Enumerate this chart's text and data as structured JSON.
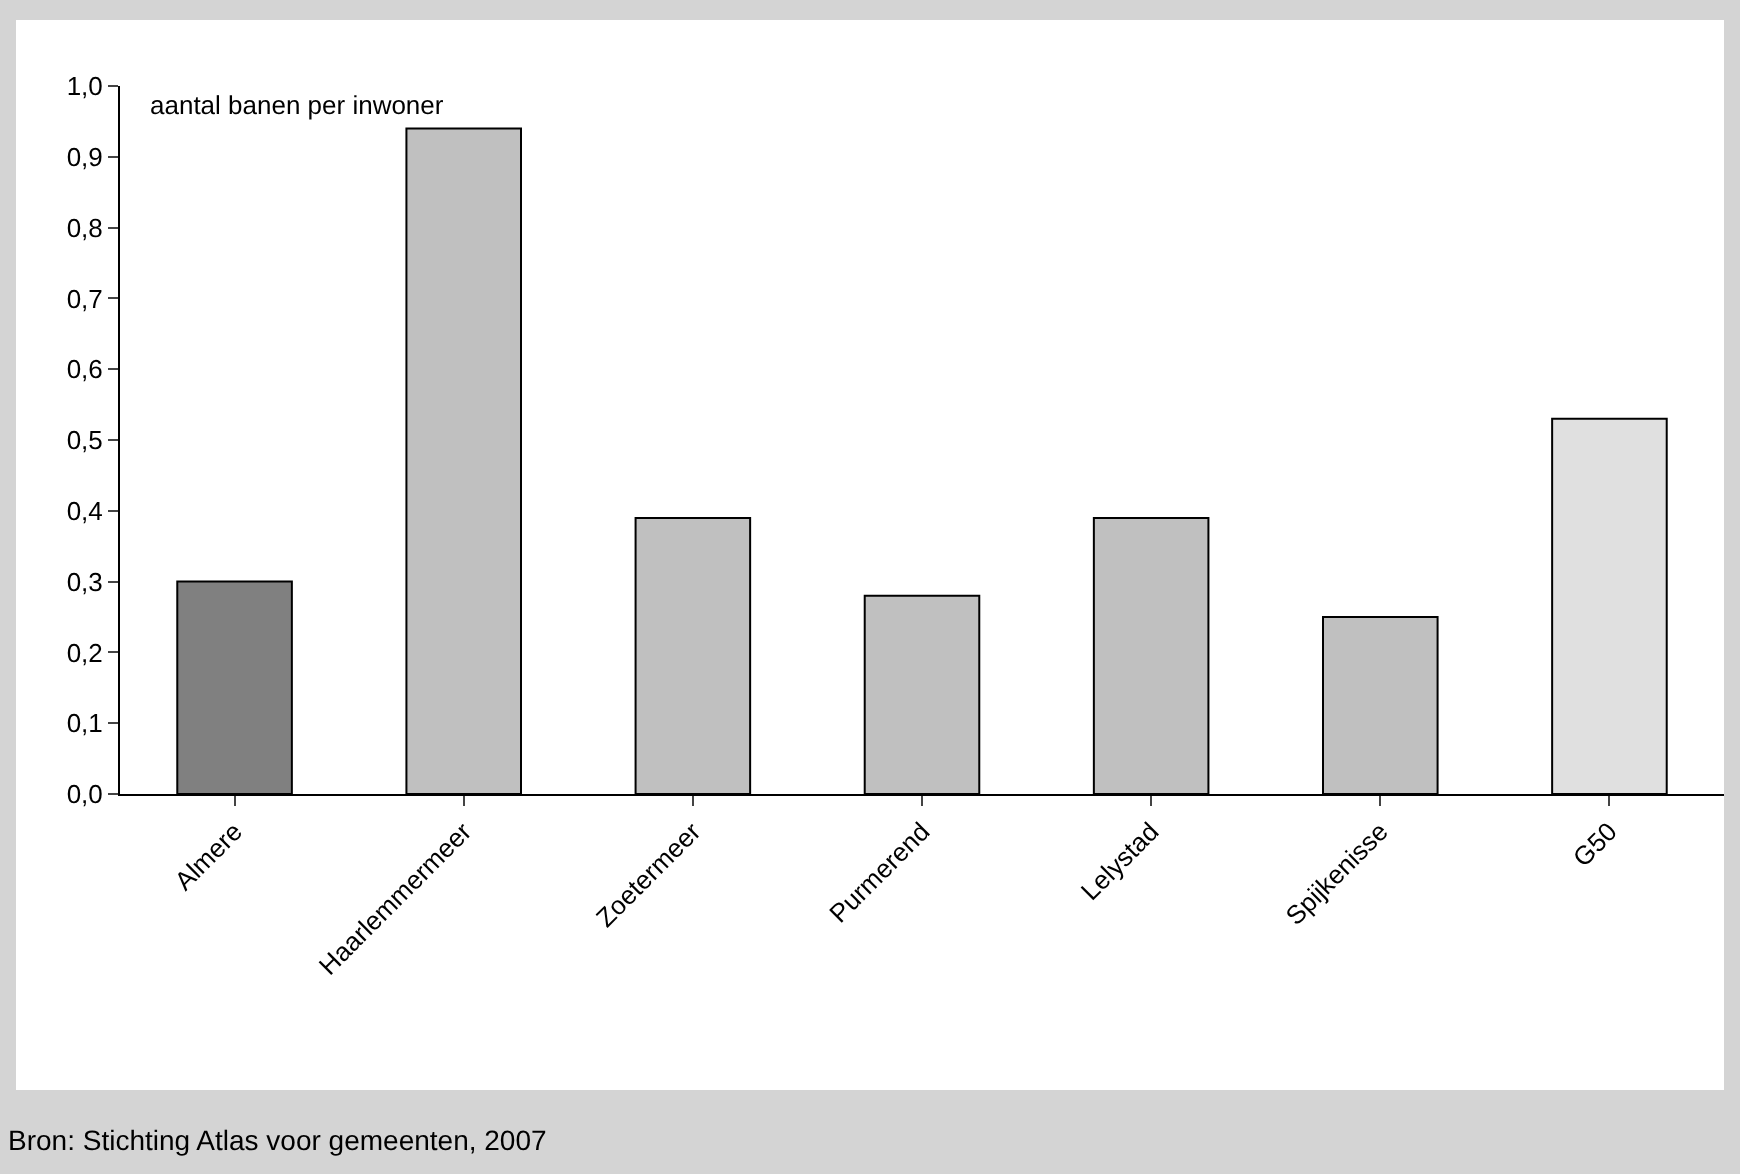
{
  "chart_data": {
    "type": "bar",
    "ylabel": "aantal banen per inwoner",
    "categories": [
      "Almere",
      "Haarlemmermeer",
      "Zoetermeer",
      "Purmerend",
      "Lelystad",
      "Spijkenisse",
      "G50"
    ],
    "values": [
      0.3,
      0.94,
      0.39,
      0.28,
      0.39,
      0.25,
      0.53
    ],
    "colors": [
      "#808080",
      "#c0c0c0",
      "#c0c0c0",
      "#c0c0c0",
      "#c0c0c0",
      "#c0c0c0",
      "#e0e0e0"
    ],
    "ylim": [
      0,
      1
    ],
    "yticks": [
      {
        "value": 0,
        "label": "0,0"
      },
      {
        "value": 0.1,
        "label": "0,1"
      },
      {
        "value": 0.2,
        "label": "0,2"
      },
      {
        "value": 0.3,
        "label": "0,3"
      },
      {
        "value": 0.4,
        "label": "0,4"
      },
      {
        "value": 0.5,
        "label": "0,5"
      },
      {
        "value": 0.6,
        "label": "0,6"
      },
      {
        "value": 0.7,
        "label": "0,7"
      },
      {
        "value": 0.8,
        "label": "0,8"
      },
      {
        "value": 0.9,
        "label": "0,9"
      },
      {
        "value": 1,
        "label": "1,0"
      }
    ],
    "grid": false,
    "annotations": [
      "Bron: Stichting Atlas voor gemeenten, 2007"
    ]
  }
}
